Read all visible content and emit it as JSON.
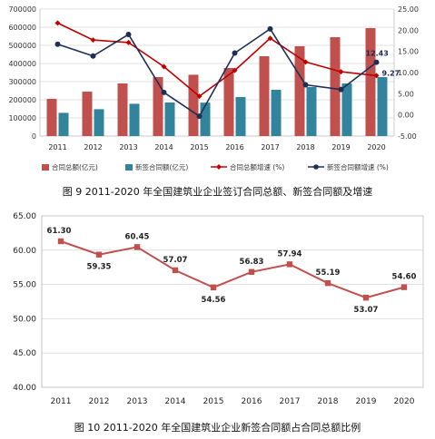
{
  "colors": {
    "bar_total": "#c0504d",
    "bar_new": "#31849b",
    "line_total": "#c00000",
    "line_new": "#1f2e55",
    "ratio_line": "#c0504d",
    "grid": "#d9d9d9"
  },
  "chart_data": [
    {
      "type": "bar",
      "title": "",
      "caption": "图 9 2011-2020 年全国建筑业企业签订合同总额、新签合同额及增速",
      "categories": [
        "2011",
        "2012",
        "2013",
        "2014",
        "2015",
        "2016",
        "2017",
        "2018",
        "2019",
        "2020"
      ],
      "y_left_ticks": [
        "0",
        "100000",
        "200000",
        "300000",
        "400000",
        "500000",
        "600000",
        "700000"
      ],
      "y_right_ticks": [
        "-5.00",
        "0.00",
        "5.00",
        "10.00",
        "15.00",
        "20.00",
        "25.00"
      ],
      "ylim_left": [
        0,
        700000
      ],
      "ylim_right": [
        -5,
        25
      ],
      "grid": true,
      "legend_position": "bottom",
      "series": [
        {
          "name": "合同总额(亿元)",
          "kind": "bar",
          "axis": "left",
          "values": [
            205000,
            245000,
            290000,
            325000,
            338000,
            375000,
            440000,
            495000,
            545000,
            595000
          ]
        },
        {
          "name": "新签合同额(亿元)",
          "kind": "bar",
          "axis": "left",
          "values": [
            128000,
            148000,
            178000,
            185000,
            184000,
            215000,
            255000,
            270000,
            290000,
            325000
          ]
        },
        {
          "name": "合同总额增速 (%)",
          "kind": "line",
          "axis": "right",
          "values": [
            21.7,
            17.7,
            17.1,
            11.4,
            4.4,
            10.5,
            18.1,
            12.5,
            10.2,
            9.27
          ]
        },
        {
          "name": "新签合同额增速 (%)",
          "kind": "line",
          "axis": "right",
          "values": [
            16.7,
            13.9,
            19.0,
            5.3,
            -0.3,
            14.6,
            20.3,
            7.1,
            6.0,
            12.43
          ]
        }
      ],
      "data_labels": [
        {
          "series": 3,
          "index": 9,
          "text": "12.43"
        },
        {
          "series": 2,
          "index": 9,
          "text": "9.27"
        }
      ]
    },
    {
      "type": "line",
      "title": "",
      "caption": "图 10 2011-2020 年全国建筑业企业新签合同额占合同总额比例",
      "categories": [
        "2011",
        "2012",
        "2013",
        "2014",
        "2015",
        "2016",
        "2017",
        "2018",
        "2019",
        "2020"
      ],
      "values": [
        61.3,
        59.35,
        60.45,
        57.07,
        54.56,
        56.83,
        57.94,
        55.19,
        53.07,
        54.6
      ],
      "value_labels": [
        "61.30",
        "59.35",
        "60.45",
        "57.07",
        "54.56",
        "56.83",
        "57.94",
        "55.19",
        "53.07",
        "54.60"
      ],
      "y_ticks": [
        "40.00",
        "45.00",
        "50.00",
        "55.00",
        "60.00",
        "65.00"
      ],
      "ylim": [
        40,
        65
      ],
      "grid": true
    }
  ]
}
